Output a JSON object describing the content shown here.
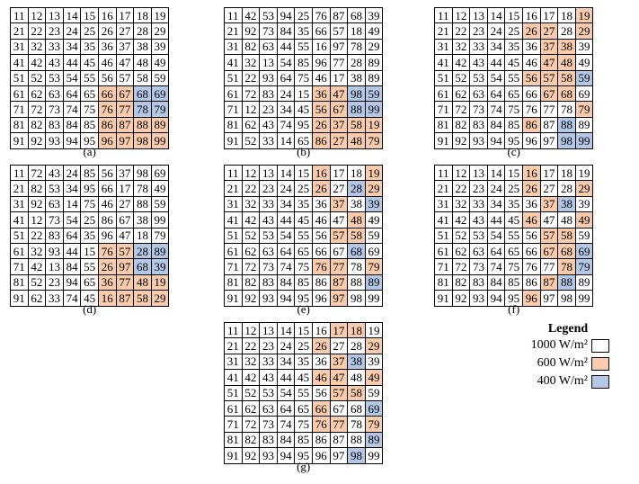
{
  "colors": {
    "w": "#ffffff",
    "o": "#f8cbad",
    "b": "#b4c7e7"
  },
  "panels": [
    {
      "label": "(a)",
      "rows": [
        [
          "11",
          "12",
          "13",
          "14",
          "15",
          "16",
          "17",
          "18",
          "19"
        ],
        [
          "21",
          "22",
          "23",
          "24",
          "25",
          "26",
          "27",
          "28",
          "29"
        ],
        [
          "31",
          "32",
          "33",
          "34",
          "35",
          "36",
          "37",
          "38",
          "39"
        ],
        [
          "41",
          "42",
          "43",
          "44",
          "45",
          "46",
          "47",
          "48",
          "49"
        ],
        [
          "51",
          "52",
          "53",
          "54",
          "55",
          "56",
          "57",
          "58",
          "59"
        ],
        [
          "61",
          "62",
          "63",
          "64",
          "65",
          "66",
          "67",
          "68",
          "69"
        ],
        [
          "71",
          "72",
          "73",
          "74",
          "75",
          "76",
          "77",
          "78",
          "79"
        ],
        [
          "81",
          "82",
          "83",
          "84",
          "85",
          "86",
          "87",
          "88",
          "89"
        ],
        [
          "91",
          "92",
          "93",
          "94",
          "95",
          "96",
          "97",
          "98",
          "99"
        ]
      ],
      "colors": [
        "wwwwwwwww",
        "wwwwwwwww",
        "wwwwwwwww",
        "wwwwwwwww",
        "wwwwwwwww",
        "wwwwwoobb",
        "wwwwwoobb",
        "wwwwwoooo",
        "wwwwwoooo"
      ]
    },
    {
      "label": "(b)",
      "rows": [
        [
          "11",
          "42",
          "53",
          "94",
          "25",
          "76",
          "87",
          "68",
          "39"
        ],
        [
          "21",
          "92",
          "73",
          "84",
          "35",
          "66",
          "57",
          "18",
          "49"
        ],
        [
          "31",
          "82",
          "63",
          "44",
          "55",
          "16",
          "97",
          "78",
          "29"
        ],
        [
          "41",
          "32",
          "13",
          "54",
          "85",
          "96",
          "77",
          "28",
          "89"
        ],
        [
          "51",
          "22",
          "93",
          "64",
          "75",
          "46",
          "17",
          "38",
          "89"
        ],
        [
          "61",
          "72",
          "83",
          "24",
          "15",
          "36",
          "47",
          "98",
          "59"
        ],
        [
          "71",
          "12",
          "23",
          "34",
          "45",
          "56",
          "67",
          "88",
          "99"
        ],
        [
          "81",
          "62",
          "43",
          "74",
          "95",
          "26",
          "37",
          "58",
          "19"
        ],
        [
          "91",
          "52",
          "33",
          "14",
          "65",
          "86",
          "27",
          "48",
          "79"
        ]
      ],
      "colors": [
        "wwwwwwwww",
        "wwwwwwwww",
        "wwwwwwwww",
        "wwwwwwwww",
        "wwwwwwwww",
        "wwwwwoobb",
        "wwwwwoobb",
        "wwwwwoooo",
        "wwwwwoooo"
      ]
    },
    {
      "label": "(c)",
      "rows": [
        [
          "11",
          "12",
          "13",
          "14",
          "15",
          "16",
          "17",
          "18",
          "19"
        ],
        [
          "21",
          "22",
          "23",
          "24",
          "25",
          "26",
          "27",
          "28",
          "29"
        ],
        [
          "31",
          "32",
          "33",
          "34",
          "35",
          "36",
          "37",
          "38",
          "39"
        ],
        [
          "41",
          "42",
          "43",
          "44",
          "45",
          "46",
          "47",
          "48",
          "49"
        ],
        [
          "51",
          "52",
          "53",
          "54",
          "55",
          "56",
          "57",
          "58",
          "59"
        ],
        [
          "61",
          "62",
          "63",
          "64",
          "65",
          "66",
          "67",
          "68",
          "69"
        ],
        [
          "71",
          "72",
          "73",
          "74",
          "75",
          "76",
          "77",
          "78",
          "79"
        ],
        [
          "81",
          "82",
          "83",
          "84",
          "85",
          "86",
          "87",
          "88",
          "89"
        ],
        [
          "91",
          "92",
          "93",
          "94",
          "95",
          "96",
          "97",
          "98",
          "99"
        ]
      ],
      "colors": [
        "wwwwwwwwo",
        "wwwwwoowo",
        "wwwwwwoow",
        "wwwwwwoow",
        "wwwwwooob",
        "wwwwwwoow",
        "wwwwwwwwo",
        "wwwwwowbw",
        "wwwwwwwbb"
      ]
    },
    {
      "label": "(d)",
      "rows": [
        [
          "11",
          "72",
          "43",
          "24",
          "85",
          "56",
          "37",
          "98",
          "69"
        ],
        [
          "21",
          "82",
          "53",
          "34",
          "95",
          "66",
          "17",
          "78",
          "49"
        ],
        [
          "31",
          "92",
          "63",
          "14",
          "75",
          "46",
          "27",
          "88",
          "59"
        ],
        [
          "41",
          "12",
          "73",
          "54",
          "25",
          "86",
          "67",
          "38",
          "99"
        ],
        [
          "51",
          "22",
          "83",
          "64",
          "35",
          "96",
          "47",
          "18",
          "79"
        ],
        [
          "61",
          "32",
          "93",
          "44",
          "15",
          "76",
          "57",
          "28",
          "89"
        ],
        [
          "71",
          "42",
          "13",
          "84",
          "55",
          "26",
          "97",
          "68",
          "39"
        ],
        [
          "81",
          "52",
          "23",
          "94",
          "65",
          "36",
          "77",
          "48",
          "19"
        ],
        [
          "91",
          "62",
          "33",
          "74",
          "45",
          "16",
          "87",
          "58",
          "29"
        ]
      ],
      "colors": [
        "wwwwwwwww",
        "wwwwwwwww",
        "wwwwwwwww",
        "wwwwwwwww",
        "wwwwwwwww",
        "wwwwwoobb",
        "wwwwwoobb",
        "wwwwwoooo",
        "wwwwwoooo"
      ]
    },
    {
      "label": "(e)",
      "rows": [
        [
          "11",
          "12",
          "13",
          "14",
          "15",
          "16",
          "17",
          "18",
          "19"
        ],
        [
          "21",
          "22",
          "23",
          "24",
          "25",
          "26",
          "27",
          "28",
          "29"
        ],
        [
          "31",
          "32",
          "33",
          "34",
          "35",
          "36",
          "37",
          "38",
          "39"
        ],
        [
          "41",
          "42",
          "43",
          "44",
          "45",
          "46",
          "47",
          "48",
          "49"
        ],
        [
          "51",
          "52",
          "53",
          "54",
          "55",
          "56",
          "57",
          "58",
          "59"
        ],
        [
          "61",
          "62",
          "63",
          "64",
          "65",
          "66",
          "67",
          "68",
          "69"
        ],
        [
          "71",
          "72",
          "73",
          "74",
          "75",
          "76",
          "77",
          "78",
          "79"
        ],
        [
          "81",
          "82",
          "83",
          "84",
          "85",
          "86",
          "87",
          "88",
          "89"
        ],
        [
          "91",
          "92",
          "93",
          "94",
          "95",
          "96",
          "97",
          "98",
          "99"
        ]
      ],
      "colors": [
        "wwwwwowwo",
        "wwwwwowbo",
        "wwwwwwowb",
        "wwwwwwwow",
        "wwwwwwoow",
        "wwwwwwwbw",
        "wwwwwoowo",
        "wwwwwwowb",
        "wwwwwwoww"
      ]
    },
    {
      "label": "(f)",
      "rows": [
        [
          "11",
          "12",
          "13",
          "14",
          "15",
          "16",
          "17",
          "18",
          "19"
        ],
        [
          "21",
          "22",
          "23",
          "24",
          "25",
          "26",
          "27",
          "28",
          "29"
        ],
        [
          "31",
          "32",
          "33",
          "34",
          "35",
          "36",
          "37",
          "38",
          "39"
        ],
        [
          "41",
          "42",
          "43",
          "44",
          "45",
          "46",
          "47",
          "48",
          "49"
        ],
        [
          "51",
          "52",
          "53",
          "54",
          "55",
          "56",
          "57",
          "58",
          "59"
        ],
        [
          "61",
          "62",
          "63",
          "64",
          "65",
          "66",
          "67",
          "68",
          "69"
        ],
        [
          "71",
          "72",
          "73",
          "74",
          "75",
          "76",
          "77",
          "78",
          "79"
        ],
        [
          "81",
          "82",
          "83",
          "84",
          "85",
          "86",
          "87",
          "88",
          "89"
        ],
        [
          "91",
          "92",
          "93",
          "94",
          "95",
          "96",
          "97",
          "98",
          "99"
        ]
      ],
      "colors": [
        "wwwwwowww",
        "wwwwwowwo",
        "wwwwwwobw",
        "wwwwwowwo",
        "wwwwwwoow",
        "wwwwwwoob",
        "wwwwwwwob",
        "wwwwwwobw",
        "wwwwwowww"
      ]
    },
    {
      "label": "(g)",
      "rows": [
        [
          "11",
          "12",
          "13",
          "14",
          "15",
          "16",
          "17",
          "18",
          "19"
        ],
        [
          "21",
          "22",
          "23",
          "24",
          "25",
          "26",
          "27",
          "28",
          "29"
        ],
        [
          "31",
          "32",
          "33",
          "34",
          "35",
          "36",
          "37",
          "38",
          "39"
        ],
        [
          "41",
          "42",
          "43",
          "44",
          "45",
          "46",
          "47",
          "48",
          "49"
        ],
        [
          "51",
          "52",
          "53",
          "54",
          "55",
          "56",
          "57",
          "58",
          "59"
        ],
        [
          "61",
          "62",
          "63",
          "64",
          "65",
          "66",
          "67",
          "68",
          "69"
        ],
        [
          "71",
          "72",
          "73",
          "74",
          "75",
          "76",
          "77",
          "78",
          "79"
        ],
        [
          "81",
          "82",
          "83",
          "84",
          "85",
          "86",
          "87",
          "88",
          "89"
        ],
        [
          "91",
          "92",
          "93",
          "94",
          "95",
          "96",
          "97",
          "98",
          "99"
        ]
      ],
      "colors": [
        "wwwwwwoow",
        "wwwwwowwo",
        "wwwwwwobw",
        "wwwwwoowo",
        "wwwwwwoow",
        "wwwwwowwb",
        "wwwwwoowo",
        "wwwwwwwwb",
        "wwwwwwwbw"
      ]
    }
  ],
  "legend": {
    "title": "Legend",
    "items": [
      {
        "label": "1000 W/m²",
        "color": "#ffffff"
      },
      {
        "label": "600 W/m²",
        "color": "#f8cbad"
      },
      {
        "label": "400 W/m²",
        "color": "#b4c7e7"
      }
    ]
  }
}
